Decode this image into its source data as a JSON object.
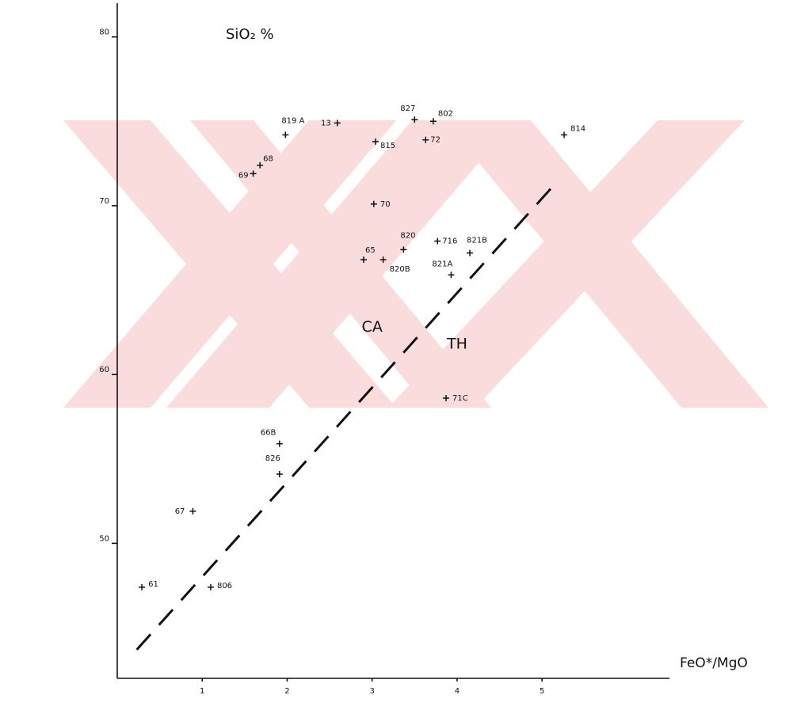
{
  "chart_data": {
    "type": "scatter",
    "y_label": "SiO₂ %",
    "x_label": "FeO*/MgO",
    "xlim": [
      0,
      6.5
    ],
    "ylim": [
      42,
      82
    ],
    "xticks": [
      1,
      2,
      3,
      4,
      5
    ],
    "yticks": [
      50,
      60,
      70,
      80
    ],
    "series": [
      {
        "color": "#111111",
        "labels": [
          "819 A",
          "13",
          "827",
          "802",
          "814",
          "815",
          "72",
          "68",
          "69",
          "70",
          "820",
          "716",
          "821B",
          "65",
          "820B",
          "821A",
          "71C",
          "66B",
          "826",
          "67",
          "61",
          "806"
        ],
        "x": [
          1.98,
          2.59,
          3.5,
          3.72,
          5.26,
          3.04,
          3.63,
          1.68,
          1.6,
          3.02,
          3.37,
          3.77,
          4.15,
          2.9,
          3.13,
          3.93,
          3.87,
          1.91,
          1.91,
          0.89,
          0.29,
          1.1
        ],
        "values": [
          74.2,
          74.9,
          75.1,
          75.0,
          74.2,
          73.8,
          73.9,
          72.4,
          71.9,
          70.1,
          67.4,
          67.9,
          67.2,
          66.8,
          66.8,
          65.9,
          58.6,
          55.9,
          54.1,
          51.9,
          47.4,
          47.4
        ]
      }
    ],
    "boundary": {
      "x": [
        0.23,
        5.19
      ],
      "values": [
        43.7,
        71.5
      ]
    },
    "annotations": [
      {
        "text": "CA",
        "x": 3.0,
        "y": 62.8
      },
      {
        "text": "TH",
        "x": 4.0,
        "y": 61.8
      }
    ]
  }
}
